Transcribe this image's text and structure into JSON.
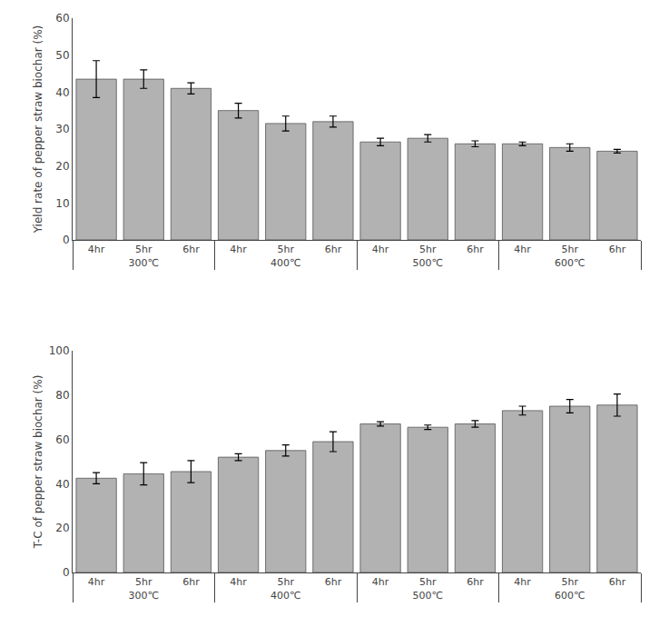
{
  "chart_data": [
    {
      "type": "bar",
      "categories": [
        "4hr",
        "5hr",
        "6hr",
        "4hr",
        "5hr",
        "6hr",
        "4hr",
        "5hr",
        "6hr",
        "4hr",
        "5hr",
        "6hr"
      ],
      "group_labels": [
        "300℃",
        "400℃",
        "500℃",
        "600℃"
      ],
      "values": [
        43.5,
        43.5,
        41.0,
        35.0,
        31.5,
        32.0,
        26.5,
        27.5,
        26.0,
        26.0,
        25.0,
        24.0
      ],
      "errors": [
        5.0,
        2.5,
        1.5,
        2.0,
        2.0,
        1.5,
        1.0,
        1.0,
        0.8,
        0.5,
        1.0,
        0.5
      ],
      "color": "#b2b2b2",
      "edge_color": "#555555",
      "error_color": "black",
      "ylabel": "Yield rate of pepper straw biochar (%)",
      "ylim": [
        0,
        60
      ],
      "yticks": [
        0,
        10,
        20,
        30,
        40,
        50,
        60
      ],
      "grid": false
    },
    {
      "type": "bar",
      "categories": [
        "4hr",
        "5hr",
        "6hr",
        "4hr",
        "5hr",
        "6hr",
        "4hr",
        "5hr",
        "6hr",
        "4hr",
        "5hr",
        "6hr"
      ],
      "group_labels": [
        "300℃",
        "400℃",
        "500℃",
        "600℃"
      ],
      "values": [
        42.5,
        44.5,
        45.5,
        52.0,
        55.0,
        59.0,
        67.0,
        65.5,
        67.0,
        73.0,
        75.0,
        75.5
      ],
      "errors": [
        2.5,
        5.0,
        5.0,
        1.5,
        2.5,
        4.5,
        1.0,
        1.0,
        1.5,
        2.0,
        3.0,
        5.0
      ],
      "color": "#b2b2b2",
      "edge_color": "#555555",
      "error_color": "black",
      "ylabel": "T-C of pepper straw biochar (%)",
      "ylim": [
        0,
        100
      ],
      "yticks": [
        0,
        20,
        40,
        60,
        80,
        100
      ],
      "grid": false
    }
  ]
}
